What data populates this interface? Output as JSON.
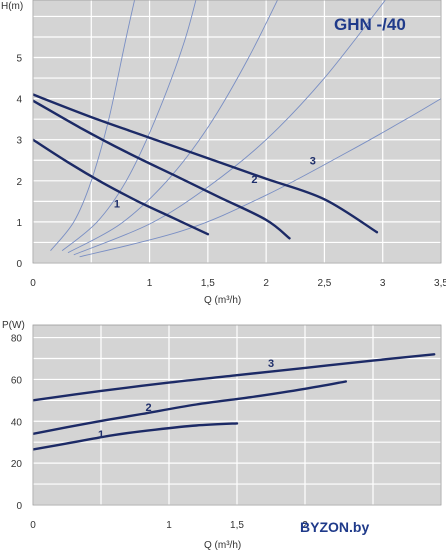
{
  "title": "GHN -/40",
  "watermark": "BYZON.by",
  "colors": {
    "plot_bg": "#d4d4d4",
    "grid": "#ffffff",
    "curve": "#1c2a66",
    "system_curve": "#7a8fc4",
    "title": "#1f3a8a"
  },
  "chart_data": [
    {
      "type": "line",
      "ylabel": "H(m)",
      "xlabel": "Q (m³/h)",
      "xlim": [
        0,
        3.5
      ],
      "ylim": [
        0,
        6.4
      ],
      "grid": true,
      "x_ticks": [
        0,
        0.5,
        1,
        1.5,
        2,
        2.5,
        3,
        3.5
      ],
      "x_tick_labels": [
        "0",
        "",
        "1",
        "1,5",
        "2",
        "2,5",
        "3",
        "3,5"
      ],
      "y_ticks": [
        0,
        1,
        2,
        3,
        4,
        5
      ],
      "y_tick_labels": [
        "0",
        "1",
        "2",
        "3",
        "4",
        "5"
      ],
      "series": [
        {
          "name": "1",
          "points": [
            [
              0,
              3.0
            ],
            [
              0.3,
              2.45
            ],
            [
              0.6,
              1.95
            ],
            [
              0.9,
              1.5
            ],
            [
              1.2,
              1.1
            ],
            [
              1.5,
              0.7
            ]
          ],
          "label_at": [
            0.72,
            1.35
          ]
        },
        {
          "name": "2",
          "points": [
            [
              0,
              3.95
            ],
            [
              0.4,
              3.3
            ],
            [
              0.8,
              2.7
            ],
            [
              1.2,
              2.15
            ],
            [
              1.6,
              1.6
            ],
            [
              2.0,
              1.05
            ],
            [
              2.2,
              0.6
            ]
          ],
          "label_at": [
            1.9,
            1.95
          ]
        },
        {
          "name": "3",
          "points": [
            [
              0,
              4.1
            ],
            [
              0.5,
              3.55
            ],
            [
              1.0,
              3.05
            ],
            [
              1.5,
              2.55
            ],
            [
              2.0,
              2.05
            ],
            [
              2.5,
              1.55
            ],
            [
              2.95,
              0.75
            ]
          ],
          "label_at": [
            2.4,
            2.4
          ]
        }
      ],
      "system_curves": [
        {
          "points": [
            [
              0.15,
              0.3
            ],
            [
              0.35,
              1.0
            ],
            [
              0.5,
              2.0
            ],
            [
              0.65,
              3.5
            ],
            [
              0.8,
              5.5
            ],
            [
              0.92,
              7.0
            ]
          ]
        },
        {
          "points": [
            [
              0.25,
              0.3
            ],
            [
              0.55,
              1.0
            ],
            [
              0.8,
              2.0
            ],
            [
              1.05,
              3.5
            ],
            [
              1.3,
              5.4
            ],
            [
              1.45,
              7.0
            ]
          ]
        },
        {
          "points": [
            [
              0.3,
              0.25
            ],
            [
              0.75,
              0.95
            ],
            [
              1.15,
              2.0
            ],
            [
              1.5,
              3.3
            ],
            [
              1.85,
              5.0
            ],
            [
              2.2,
              7.0
            ]
          ]
        },
        {
          "points": [
            [
              0.35,
              0.2
            ],
            [
              1.0,
              0.95
            ],
            [
              1.5,
              1.85
            ],
            [
              2.0,
              3.0
            ],
            [
              2.5,
              4.5
            ],
            [
              3.05,
              6.5
            ]
          ]
        },
        {
          "points": [
            [
              0.4,
              0.15
            ],
            [
              1.3,
              0.8
            ],
            [
              2.0,
              1.65
            ],
            [
              2.7,
              2.7
            ],
            [
              3.2,
              3.5
            ],
            [
              3.5,
              4.0
            ]
          ]
        }
      ]
    },
    {
      "type": "line",
      "ylabel": "P(W)",
      "xlabel": "Q (m³/h)",
      "xlim": [
        0,
        3
      ],
      "ylim": [
        0,
        86
      ],
      "grid": true,
      "x_ticks": [
        0,
        0.5,
        1,
        1.5,
        2,
        2.5,
        3
      ],
      "x_tick_labels": [
        "0",
        "",
        "1",
        "1,5",
        "2",
        "",
        ""
      ],
      "y_ticks": [
        0,
        20,
        40,
        60,
        80
      ],
      "y_tick_labels": [
        "0",
        "20",
        "40",
        "60",
        "80"
      ],
      "series": [
        {
          "name": "1",
          "points": [
            [
              0,
              26.5
            ],
            [
              0.3,
              30
            ],
            [
              0.6,
              33.5
            ],
            [
              0.9,
              36
            ],
            [
              1.2,
              38
            ],
            [
              1.5,
              39
            ]
          ],
          "label_at": [
            0.5,
            32
          ]
        },
        {
          "name": "2",
          "points": [
            [
              0,
              34
            ],
            [
              0.4,
              39
            ],
            [
              0.8,
              43.5
            ],
            [
              1.2,
              48
            ],
            [
              1.6,
              51.5
            ],
            [
              2.0,
              55.5
            ],
            [
              2.3,
              59
            ]
          ],
          "label_at": [
            0.85,
            45
          ]
        },
        {
          "name": "3",
          "points": [
            [
              0,
              50
            ],
            [
              0.5,
              54.5
            ],
            [
              1.0,
              58.5
            ],
            [
              1.5,
              62
            ],
            [
              2.0,
              65.5
            ],
            [
              2.5,
              69
            ],
            [
              2.95,
              72
            ]
          ],
          "label_at": [
            1.75,
            66
          ]
        }
      ]
    }
  ]
}
